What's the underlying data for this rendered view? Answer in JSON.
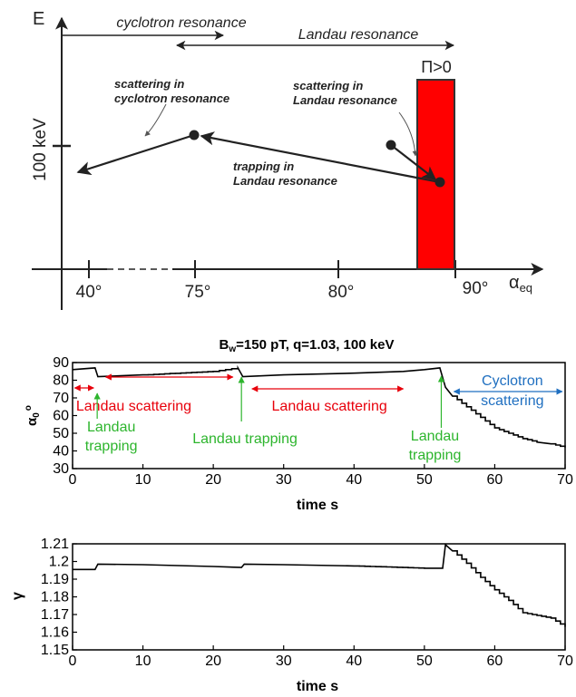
{
  "diagram": {
    "axis_y_label": "E",
    "axis_x_label_main": "α",
    "axis_x_label_sub": "eq",
    "energy_tick_label": "100 keV",
    "x_ticks": [
      {
        "label": "40°",
        "value": 40
      },
      {
        "label": "75°",
        "value": 75
      },
      {
        "label": "80°",
        "value": 80
      },
      {
        "label": "90°",
        "value": 90
      }
    ],
    "ranges": [
      {
        "label": "cyclotron resonance"
      },
      {
        "label": "Landau resonance"
      }
    ],
    "region_label": "Π>0",
    "region_color": "#ff0000",
    "annotations": [
      {
        "line1": "scattering in",
        "line2": "cyclotron resonance"
      },
      {
        "line1": "scattering in",
        "line2": "Landau resonance"
      },
      {
        "line1": "trapping in",
        "line2": "Landau resonance"
      }
    ]
  },
  "chart_data": [
    {
      "type": "line",
      "title_main": "B",
      "title_sub": "w",
      "title_rest": "=150 pT, q=1.03, 100 keV",
      "xlabel": "time s",
      "ylabel_main": "α",
      "ylabel_sub": "0",
      "ylabel_sup": "o",
      "xlim": [
        0,
        70
      ],
      "ylim": [
        30,
        90
      ],
      "xticks": [
        0,
        10,
        20,
        30,
        40,
        50,
        60,
        70
      ],
      "yticks": [
        30,
        40,
        50,
        60,
        70,
        80,
        90
      ],
      "series": [
        {
          "color": "#000000",
          "x": [
            0,
            3.2,
            3.6,
            10,
            20,
            23.5,
            24.2,
            30,
            40,
            47,
            50,
            52.2,
            53,
            54,
            56,
            58,
            60,
            62,
            64,
            66,
            68,
            70
          ],
          "y": [
            86,
            87,
            82,
            83,
            85,
            87,
            82,
            83,
            84,
            85,
            86,
            87,
            76,
            71,
            65,
            59,
            53,
            50,
            47,
            45,
            44,
            42
          ]
        }
      ],
      "annotations": [
        {
          "text": "Landau scattering",
          "color": "#e8000b",
          "x": [
            0,
            3
          ]
        },
        {
          "text": "Landau scattering",
          "color": "#e8000b",
          "x": [
            25,
            47
          ]
        },
        {
          "text": "Landau",
          "text2": "trapping",
          "color": "#2db52d",
          "x": 3.5
        },
        {
          "text": "Landau trapping",
          "color": "#2db52d",
          "x": 24
        },
        {
          "text": "Landau",
          "text2": "trapping",
          "color": "#2db52d",
          "x": 52.5
        },
        {
          "text": "Cyclotron",
          "text2": "scattering",
          "color": "#1f6fc0",
          "x": [
            54,
            70
          ]
        }
      ]
    },
    {
      "type": "line",
      "xlabel": "time s",
      "ylabel": "γ",
      "xlim": [
        0,
        70
      ],
      "ylim": [
        1.15,
        1.21
      ],
      "xticks": [
        0,
        10,
        20,
        30,
        40,
        50,
        60,
        70
      ],
      "yticks": [
        1.15,
        1.16,
        1.17,
        1.18,
        1.19,
        1.2,
        1.21
      ],
      "ytick_labels": [
        "1.15",
        "1.16",
        "1.17",
        "1.18",
        "1.19",
        "1.2",
        "1.21"
      ],
      "series": [
        {
          "color": "#000000",
          "x": [
            0,
            3.2,
            3.6,
            10,
            20,
            24,
            24.4,
            30,
            40,
            50,
            52.6,
            53,
            54,
            56,
            58,
            60,
            62,
            64,
            66,
            68,
            70
          ],
          "y": [
            1.1955,
            1.1955,
            1.1985,
            1.1982,
            1.1972,
            1.1966,
            1.1985,
            1.1982,
            1.1975,
            1.1962,
            1.1962,
            1.2095,
            1.206,
            1.199,
            1.191,
            1.184,
            1.178,
            1.171,
            1.1695,
            1.168,
            1.163
          ]
        }
      ]
    }
  ]
}
